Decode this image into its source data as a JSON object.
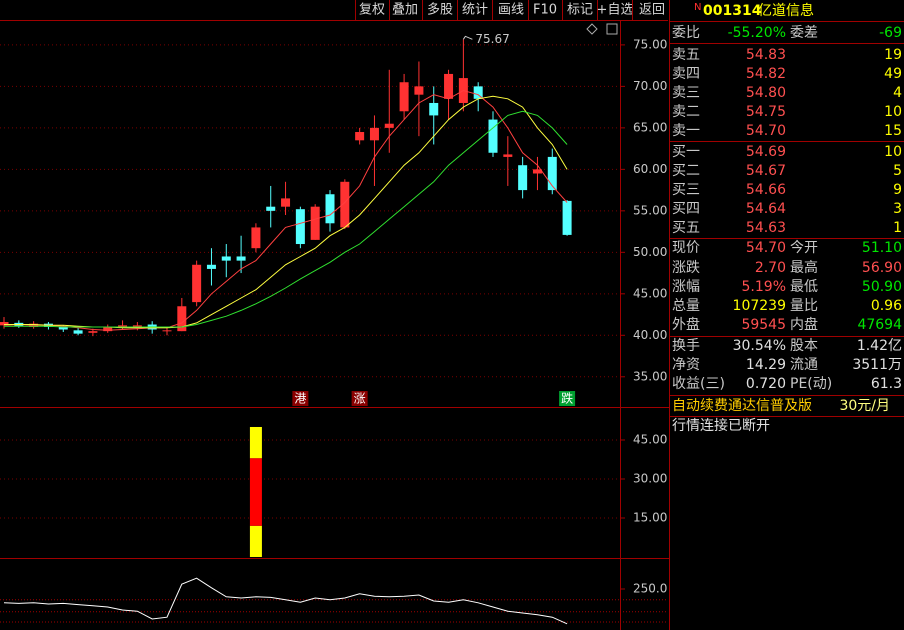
{
  "toolbar": [
    "复权",
    "叠加",
    "多股",
    "统计",
    "画线",
    "F10",
    "标记",
    "+自选",
    "返回"
  ],
  "quote": {
    "flag": "N",
    "code": "001314",
    "name": "亿道信息",
    "ratio": {
      "label": "委比",
      "value": "-55.20%",
      "label2": "委差",
      "value2": "-69",
      "color": "#00e600"
    },
    "price_color": "#ff5050",
    "volume_color": "#ffff00",
    "asks": [
      {
        "label": "卖五",
        "price": "54.83",
        "volume": "19"
      },
      {
        "label": "卖四",
        "price": "54.82",
        "volume": "49"
      },
      {
        "label": "卖三",
        "price": "54.80",
        "volume": "4"
      },
      {
        "label": "卖二",
        "price": "54.75",
        "volume": "10"
      },
      {
        "label": "卖一",
        "price": "54.70",
        "volume": "15"
      }
    ],
    "bids": [
      {
        "label": "买一",
        "price": "54.69",
        "volume": "10"
      },
      {
        "label": "买二",
        "price": "54.67",
        "volume": "5"
      },
      {
        "label": "买三",
        "price": "54.66",
        "volume": "9"
      },
      {
        "label": "买四",
        "price": "54.64",
        "volume": "3"
      },
      {
        "label": "买五",
        "price": "54.63",
        "volume": "1"
      }
    ],
    "stats": [
      {
        "label": "现价",
        "value": "54.70",
        "color": "#ff5050",
        "label2": "今开",
        "value2": "51.10",
        "color2": "#00e600"
      },
      {
        "label": "涨跌",
        "value": "2.70",
        "color": "#ff5050",
        "label2": "最高",
        "value2": "56.90",
        "color2": "#ff5050"
      },
      {
        "label": "涨幅",
        "value": "5.19%",
        "color": "#ff5050",
        "label2": "最低",
        "value2": "50.90",
        "color2": "#00e600"
      },
      {
        "label": "总量",
        "value": "107239",
        "color": "#ffff00",
        "label2": "量比",
        "value2": "0.96",
        "color2": "#ffff00"
      },
      {
        "label": "外盘",
        "value": "59545",
        "color": "#ff5050",
        "label2": "内盘",
        "value2": "47694",
        "color2": "#00e600"
      },
      {
        "label": "换手",
        "value": "30.54%",
        "color": "#e0e0e0",
        "label2": "股本",
        "value2": "1.42亿",
        "color2": "#e0e0e0"
      },
      {
        "label": "净资",
        "value": "14.29",
        "color": "#e0e0e0",
        "label2": "流通",
        "value2": "3511万",
        "color2": "#e0e0e0"
      },
      {
        "label": "收益(三)",
        "value": "0.720",
        "color": "#e0e0e0",
        "label2": "PE(动)",
        "value2": "61.3",
        "color2": "#e0e0e0"
      }
    ],
    "promo": "自动续费通达信普及版",
    "price_plan": "30元/月",
    "status": "行情连接已断开"
  },
  "chart_data": [
    {
      "type": "candlestick",
      "xlim": [
        -0.27,
        41.57
      ],
      "ylim": [
        31.6,
        78.0
      ],
      "yticks": [
        {
          "value": 35,
          "label": "35.00"
        },
        {
          "value": 40,
          "label": "40.00"
        },
        {
          "value": 45,
          "label": "45.00"
        },
        {
          "value": 50,
          "label": "50.00"
        },
        {
          "value": 55,
          "label": "55.00"
        },
        {
          "value": 60,
          "label": "60.00"
        },
        {
          "value": 65,
          "label": "65.00"
        },
        {
          "value": 70,
          "label": "70.00"
        },
        {
          "value": 75,
          "label": "75.00"
        }
      ],
      "grid": true,
      "up_color": "#ff3232",
      "down_color": "#54ffff",
      "open": [
        41.2,
        41.5,
        41.0,
        41.4,
        41.0,
        40.6,
        40.3,
        40.5,
        41.0,
        41.0,
        41.3,
        40.5,
        40.5,
        44,
        48.5,
        49.5,
        49.5,
        50.5,
        55.5,
        55.5,
        55.2,
        51.5,
        57,
        53,
        63.5,
        63.5,
        65,
        67,
        69,
        68,
        68.5,
        68,
        70,
        66,
        61.5,
        60.5,
        59.5,
        61.5,
        56.2
      ],
      "high": [
        42.2,
        41.8,
        41.7,
        41.6,
        41.2,
        40.9,
        40.8,
        41.3,
        41.8,
        41.6,
        41.7,
        41.0,
        44.5,
        49,
        50.5,
        51,
        52,
        53.5,
        58,
        58.5,
        55.5,
        55.8,
        57.5,
        58.8,
        65,
        66.5,
        72,
        71.5,
        73,
        70,
        72,
        75.67,
        70.5,
        67,
        64,
        61.5,
        61.5,
        62.5,
        56.3
      ],
      "low": [
        40.8,
        40.9,
        40.8,
        40.7,
        40.4,
        40.0,
        39.9,
        40.3,
        40.7,
        40.6,
        40.2,
        40.0,
        40.5,
        43.5,
        46,
        47,
        47.5,
        50,
        53,
        54.5,
        50.5,
        51.5,
        52.5,
        52.8,
        63,
        58,
        62,
        66,
        64,
        63,
        66,
        67,
        67,
        61.5,
        58,
        56.5,
        57.5,
        57,
        52
      ],
      "close": [
        41.6,
        41.1,
        41.4,
        41.0,
        40.7,
        40.2,
        40.5,
        41.0,
        41.2,
        41.2,
        40.7,
        40.6,
        43.5,
        48.5,
        48,
        49,
        49,
        53,
        55,
        56.5,
        51,
        55.5,
        53.5,
        58.5,
        64.5,
        65,
        65.5,
        70.5,
        70,
        66.5,
        71.5,
        71,
        68.5,
        62,
        61.8,
        57.5,
        60,
        57.5,
        52.1
      ],
      "series": [
        {
          "color": "#ff4040",
          "values": [
            41.2,
            41.3,
            41.2,
            41.2,
            41.1,
            40.9,
            40.7,
            40.6,
            40.7,
            40.8,
            40.9,
            40.9,
            41.5,
            43,
            45,
            46.5,
            48,
            49,
            51,
            53,
            53.5,
            54,
            54.5,
            56,
            58,
            61.5,
            64,
            66,
            68,
            69,
            68.5,
            69.5,
            69,
            67.5,
            65,
            62,
            60.5,
            58,
            56
          ]
        },
        {
          "color": "#ffff40",
          "values": [
            41.3,
            41.3,
            41.3,
            41.2,
            41.2,
            41.1,
            41.0,
            41.0,
            40.9,
            40.9,
            40.9,
            40.9,
            41,
            41.5,
            42.5,
            43.5,
            44.5,
            45.5,
            47,
            48.5,
            49.5,
            50.5,
            52,
            53,
            54.5,
            56.5,
            58.5,
            60.5,
            62,
            64,
            66,
            67.5,
            68.5,
            68.8,
            68.5,
            67.5,
            65,
            63,
            60
          ]
        },
        {
          "color": "#30e030",
          "values": [
            41.1,
            41.1,
            41.1,
            41.1,
            41.0,
            41.0,
            41.0,
            41.0,
            41.0,
            41.0,
            41.0,
            41.0,
            41,
            41.3,
            41.8,
            42.3,
            43,
            43.8,
            44.7,
            45.7,
            46.8,
            47.8,
            48.8,
            50,
            51,
            52.5,
            54,
            55.5,
            57,
            58.5,
            60.5,
            62,
            63.5,
            65,
            66.5,
            67,
            66.5,
            65,
            63
          ]
        }
      ],
      "annotations": [
        {
          "text": "75.67",
          "x": 31,
          "y": 75.67
        }
      ],
      "signals": [
        {
          "label": "港",
          "x": 20,
          "color": "#8a0000"
        },
        {
          "label": "涨",
          "x": 24,
          "color": "#8a0000"
        },
        {
          "label": "跌",
          "x": 38,
          "color": "#00a030"
        }
      ]
    },
    {
      "type": "bar",
      "xlim": [
        -0.27,
        41.57
      ],
      "ylim": [
        0,
        57.3
      ],
      "yticks": [
        {
          "value": 15,
          "label": "15.00"
        },
        {
          "value": 30,
          "label": "30.00"
        },
        {
          "value": 45,
          "label": "45.00"
        }
      ],
      "grid": true,
      "x": [
        17
      ],
      "series": [
        {
          "color": "#ffff00",
          "values": [
            12
          ]
        },
        {
          "color": "#ff0000",
          "values": [
            26
          ]
        },
        {
          "color": "#ffff00",
          "values": [
            12
          ]
        }
      ]
    },
    {
      "type": "line",
      "xlim": [
        -0.27,
        41.57
      ],
      "ylim": [
        181.7,
        298.3
      ],
      "yticks": [
        {
          "value": 250,
          "label": "250.0"
        }
      ],
      "reference_lines": [
        232,
        212,
        195
      ],
      "color": "#ffffff",
      "values": [
        227,
        226,
        227,
        225,
        226,
        224,
        222,
        220,
        215,
        213,
        200,
        203,
        258,
        268,
        252,
        237,
        235,
        237,
        236,
        232,
        228,
        235,
        232,
        235,
        242,
        238,
        237,
        238,
        240,
        230,
        228,
        232,
        227,
        220,
        213,
        210,
        207,
        203,
        192
      ]
    }
  ]
}
